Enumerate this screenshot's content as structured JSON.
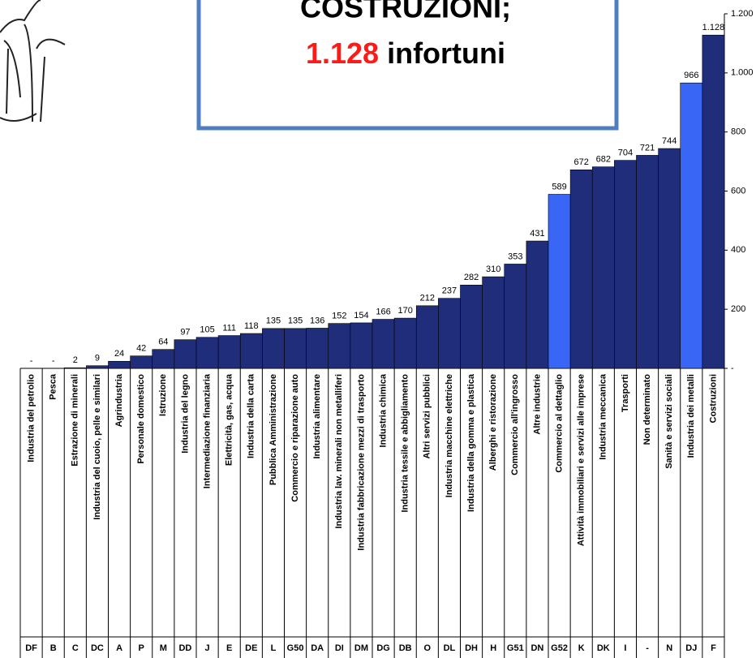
{
  "chart_data": {
    "type": "bar",
    "title_line1": "COSTRUZIONI;",
    "title_highlight": "1.128",
    "title_rest": "infortuni",
    "categories": [
      "Industria del petrolio",
      "Pesca",
      "Estrazione di minerali",
      "Industria del cuoio, pelle e similari",
      "Agrindustria",
      "Personale domestico",
      "Istruzione",
      "Industria del legno",
      "Intermediazione finanziaria",
      "Elettricità, gas, acqua",
      "Industria della carta",
      "Pubblica Amministrazione",
      "Commercio e riparazione auto",
      "Industria alimentare",
      "Industria  lav. minerali non metalliferi",
      "Industria fabbricazione mezzi di trasporto",
      "Industria chimica",
      "Industria tessile e abbigliamento",
      "Altri servizi pubblici",
      "Industria macchine elettriche",
      "Industria della gomma e plastica",
      "Alberghi e ristorazione",
      "Commercio all'ingrosso",
      "Altre industrie",
      "Commercio al dettaglio",
      "Attività immobiliari e servizi alle imprese",
      "Industria meccanica",
      "Trasporti",
      "Non determinato",
      "Sanità e servizi sociali",
      "Industria dei metalli",
      "Costruzioni"
    ],
    "codes": [
      "DF",
      "B",
      "C",
      "DC",
      "A",
      "P",
      "M",
      "DD",
      "J",
      "E",
      "DE",
      "L",
      "G50",
      "DA",
      "DI",
      "DM",
      "DG",
      "DB",
      "O",
      "DL",
      "DH",
      "H",
      "G51",
      "DN",
      "G52",
      "K",
      "DK",
      "I",
      "-",
      "N",
      "DJ",
      "F"
    ],
    "values": [
      0,
      0,
      2,
      9,
      24,
      42,
      64,
      97,
      105,
      111,
      118,
      135,
      135,
      136,
      152,
      154,
      166,
      170,
      212,
      237,
      282,
      310,
      353,
      431,
      589,
      672,
      682,
      704,
      721,
      744,
      966,
      1128
    ],
    "value_labels": [
      "-",
      "-",
      "2",
      "9",
      "24",
      "42",
      "64",
      "97",
      "105",
      "111",
      "118",
      "135",
      "135",
      "136",
      "152",
      "154",
      "166",
      "170",
      "212",
      "237",
      "282",
      "310",
      "353",
      "431",
      "589",
      "672",
      "682",
      "704",
      "721",
      "744",
      "966",
      "1.128"
    ],
    "colors": [
      "#1f2d7b",
      "#1f2d7b",
      "#1f2d7b",
      "#1f2d7b",
      "#1f2d7b",
      "#1f2d7b",
      "#1f2d7b",
      "#1f2d7b",
      "#1f2d7b",
      "#1f2d7b",
      "#1f2d7b",
      "#1f2d7b",
      "#1f2d7b",
      "#1f2d7b",
      "#1f2d7b",
      "#1f2d7b",
      "#1f2d7b",
      "#1f2d7b",
      "#1f2d7b",
      "#1f2d7b",
      "#1f2d7b",
      "#1f2d7b",
      "#1f2d7b",
      "#1f2d7b",
      "#3a66f5",
      "#1f2d7b",
      "#1f2d7b",
      "#1f2d7b",
      "#1f2d7b",
      "#1f2d7b",
      "#3a66f5",
      "#1f2d7b"
    ],
    "ylim": [
      0,
      1200
    ],
    "yticks": [
      {
        "value": 0,
        "label": "-"
      },
      200,
      400,
      600,
      800,
      {
        "value": 1000,
        "label": "1.000"
      },
      {
        "value": 1200,
        "label": "1.200"
      }
    ]
  }
}
